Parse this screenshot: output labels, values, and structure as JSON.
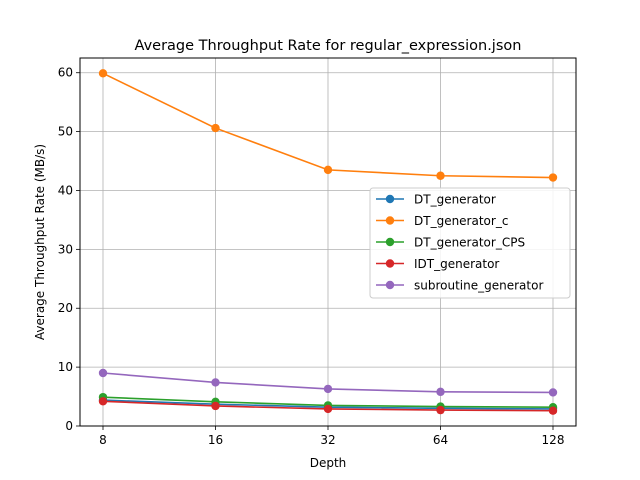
{
  "chart_data": {
    "type": "line",
    "title": "Average Throughput Rate for regular_expression.json",
    "xlabel": "Depth",
    "ylabel": "Average Throughput Rate (MB/s)",
    "x_scale": "log2",
    "x": [
      8,
      16,
      32,
      64,
      128
    ],
    "x_tick_labels": [
      "8",
      "16",
      "32",
      "64",
      "128"
    ],
    "ylim": [
      0,
      62.5
    ],
    "y_ticks": [
      0,
      10,
      20,
      30,
      40,
      50,
      60
    ],
    "y_tick_labels": [
      "0",
      "10",
      "20",
      "30",
      "40",
      "50",
      "60"
    ],
    "grid": true,
    "legend_position": "center-right",
    "series": [
      {
        "name": "DT_generator",
        "color": "#1f77b4",
        "values": [
          4.4,
          3.7,
          3.2,
          3.0,
          2.9
        ]
      },
      {
        "name": "DT_generator_c",
        "color": "#ff7f0e",
        "values": [
          59.9,
          50.6,
          43.5,
          42.5,
          42.2
        ]
      },
      {
        "name": "DT_generator_CPS",
        "color": "#2ca02c",
        "values": [
          4.9,
          4.1,
          3.5,
          3.3,
          3.2
        ]
      },
      {
        "name": "IDT_generator",
        "color": "#d62728",
        "values": [
          4.2,
          3.4,
          2.9,
          2.7,
          2.6
        ]
      },
      {
        "name": "subroutine_generator",
        "color": "#9467bd",
        "values": [
          9.0,
          7.4,
          6.3,
          5.8,
          5.7
        ]
      }
    ]
  }
}
